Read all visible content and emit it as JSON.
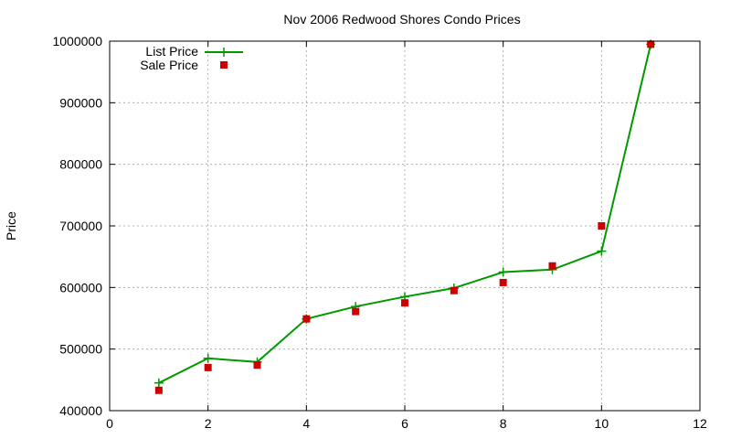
{
  "chart_data": {
    "type": "line",
    "title": "Nov 2006 Redwood Shores Condo Prices",
    "xlabel": "",
    "ylabel": "Price",
    "xlim": [
      0,
      12
    ],
    "ylim": [
      400000,
      1000000
    ],
    "xticks": [
      "0",
      "2",
      "4",
      "6",
      "8",
      "10",
      "12"
    ],
    "yticks": [
      "400000",
      "500000",
      "600000",
      "700000",
      "800000",
      "900000",
      "1000000"
    ],
    "grid": true,
    "legend_position": "top-left",
    "series": [
      {
        "name": "List Price",
        "style": "line+plus-markers",
        "color": "#009900",
        "x": [
          1,
          2,
          3,
          4,
          5,
          6,
          7,
          8,
          9,
          10,
          11
        ],
        "y": [
          445000,
          485000,
          479000,
          549000,
          569000,
          585000,
          599000,
          625000,
          629000,
          659000,
          995000
        ]
      },
      {
        "name": "Sale Price",
        "style": "square-markers",
        "color": "#cc0000",
        "x": [
          1,
          2,
          3,
          4,
          5,
          6,
          7,
          8,
          9,
          10,
          11
        ],
        "y": [
          433000,
          470000,
          474000,
          549000,
          561000,
          575000,
          595000,
          608000,
          635000,
          700000,
          995000
        ]
      }
    ]
  }
}
